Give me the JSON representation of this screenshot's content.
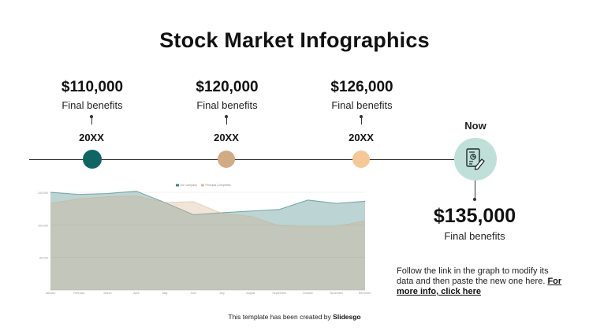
{
  "title": "Stock Market Infographics",
  "milestones": [
    {
      "amount": "$110,000",
      "label": "Final benefits",
      "year": "20XX",
      "color": "#0f6464"
    },
    {
      "amount": "$120,000",
      "label": "Final benefits",
      "year": "20XX",
      "color": "#d2ab85"
    },
    {
      "amount": "$126,000",
      "label": "Final benefits",
      "year": "20XX",
      "color": "#f5c896"
    }
  ],
  "now": {
    "label": "Now",
    "amount": "$135,000",
    "sub": "Final benefits",
    "color": "#bfe0d8",
    "icon": "document-chart-icon"
  },
  "note": {
    "text": "Follow the link in the graph to modify its data and then paste the new one here.",
    "link": "For more info, click here"
  },
  "footer": {
    "text": "This template has been created by",
    "brand": "Slidesgo"
  },
  "chart_data": {
    "type": "area",
    "categories": [
      "January",
      "February",
      "March",
      "April",
      "May",
      "June",
      "July",
      "August",
      "September",
      "October",
      "November",
      "December"
    ],
    "series": [
      {
        "name": "Our company",
        "values": [
          240,
          235,
          237,
          243,
          215,
          185,
          190,
          194,
          198,
          221,
          213,
          218
        ],
        "color": "#0f6464"
      },
      {
        "name": "Principal Competitor",
        "values": [
          213,
          224,
          229,
          231,
          215,
          217,
          188,
          181,
          158,
          156,
          156,
          170
        ],
        "color": "#d2ab85"
      }
    ],
    "ylim": [
      0,
      240
    ],
    "yticks": [
      0,
      80,
      160,
      240
    ],
    "ytick_labels": [
      "",
      "80,000",
      "160,000",
      "240,000"
    ],
    "legend": "top",
    "grid": true
  }
}
